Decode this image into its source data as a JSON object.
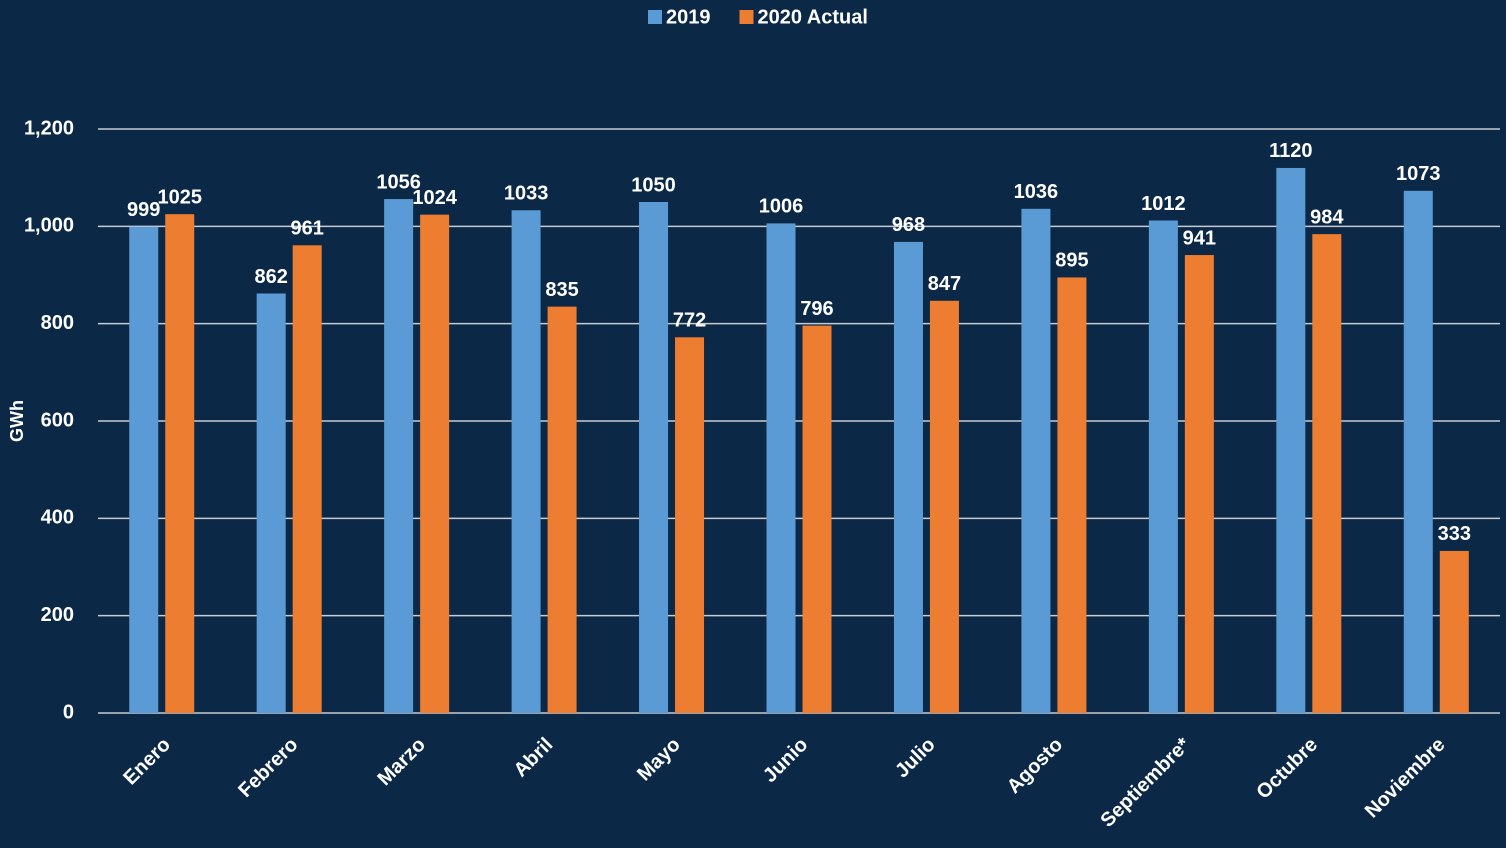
{
  "chart_data": {
    "type": "bar",
    "categories": [
      "Enero",
      "Febrero",
      "Marzo",
      "Abril",
      "Mayo",
      "Junio",
      "Julio",
      "Agosto",
      "Septiembre*",
      "Octubre",
      "Noviembre"
    ],
    "series": [
      {
        "name": "2019",
        "color": "#5b9bd5",
        "values": [
          999,
          862,
          1056,
          1033,
          1050,
          1006,
          968,
          1036,
          1012,
          1120,
          1073
        ]
      },
      {
        "name": "2020 Actual",
        "color": "#ed7d31",
        "values": [
          1025,
          961,
          1024,
          835,
          772,
          796,
          847,
          895,
          941,
          984,
          333
        ]
      }
    ],
    "y_label": "GWh",
    "ylim": [
      0,
      1200
    ],
    "yticks": [
      0,
      200,
      400,
      600,
      800,
      {
        "value": 1000,
        "label": "1,000"
      },
      {
        "value": 1200,
        "label": "1,200"
      }
    ],
    "grid": true,
    "legend": "top"
  }
}
